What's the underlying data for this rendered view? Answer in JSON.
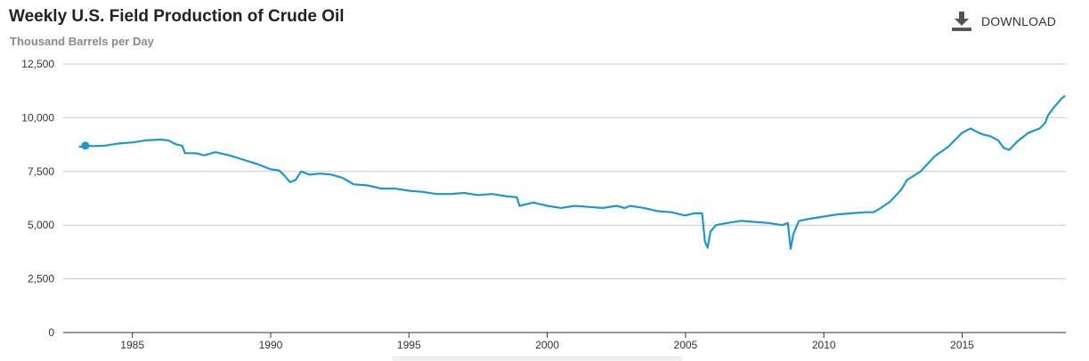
{
  "header": {
    "title": "Weekly U.S. Field Production of Crude Oil",
    "subtitle": "Thousand Barrels per Day",
    "download_label": "DOWNLOAD",
    "download_icon": "download-icon"
  },
  "colors": {
    "line": "#1f98c9",
    "grid": "#c8c8c8",
    "axis": "#333333",
    "text": "#333333"
  },
  "chart_data": {
    "type": "line",
    "title": "Weekly U.S. Field Production of Crude Oil",
    "ylabel": "Thousand Barrels per Day",
    "xlim": [
      1982.6,
      1986.6
    ],
    "ylim": [
      0,
      12500
    ],
    "y_ticks": [
      0,
      2500,
      5000,
      7500,
      10000,
      12500
    ],
    "y_tick_labels": [
      "0",
      "2,500",
      "5,000",
      "7,500",
      "10,000",
      "12,500"
    ],
    "x_ticks": [
      1985,
      1990,
      1995,
      2000,
      2005,
      2010,
      2015
    ],
    "x_tick_labels": [
      "1985",
      "1990",
      "1995",
      "2000",
      "2005",
      "2010",
      "2015"
    ],
    "grid": true,
    "legend": "none",
    "start_marker": {
      "x": 1983.3,
      "y": 8700
    },
    "series": [
      {
        "values": [
          [
            1983.1,
            8650
          ],
          [
            1983.3,
            8700
          ],
          [
            1983.6,
            8680
          ],
          [
            1984.0,
            8700
          ],
          [
            1984.5,
            8800
          ],
          [
            1985.0,
            8850
          ],
          [
            1985.5,
            8950
          ],
          [
            1986.0,
            8980
          ],
          [
            1986.3,
            8950
          ],
          [
            1986.6,
            8750
          ],
          [
            1986.8,
            8700
          ],
          [
            1986.9,
            8350
          ],
          [
            1987.3,
            8350
          ],
          [
            1987.6,
            8250
          ],
          [
            1988.0,
            8400
          ],
          [
            1988.5,
            8250
          ],
          [
            1989.0,
            8050
          ],
          [
            1989.5,
            7850
          ],
          [
            1990.0,
            7600
          ],
          [
            1990.3,
            7550
          ],
          [
            1990.5,
            7300
          ],
          [
            1990.7,
            7000
          ],
          [
            1990.9,
            7100
          ],
          [
            1991.1,
            7500
          ],
          [
            1991.4,
            7350
          ],
          [
            1991.8,
            7400
          ],
          [
            1992.2,
            7350
          ],
          [
            1992.6,
            7200
          ],
          [
            1993.0,
            6900
          ],
          [
            1993.5,
            6850
          ],
          [
            1994.0,
            6700
          ],
          [
            1994.5,
            6700
          ],
          [
            1995.0,
            6600
          ],
          [
            1995.5,
            6550
          ],
          [
            1996.0,
            6450
          ],
          [
            1996.5,
            6450
          ],
          [
            1997.0,
            6500
          ],
          [
            1997.5,
            6400
          ],
          [
            1998.0,
            6450
          ],
          [
            1998.5,
            6350
          ],
          [
            1998.9,
            6300
          ],
          [
            1999.0,
            5900
          ],
          [
            1999.5,
            6050
          ],
          [
            2000.0,
            5900
          ],
          [
            2000.5,
            5800
          ],
          [
            2001.0,
            5900
          ],
          [
            2001.5,
            5850
          ],
          [
            2002.0,
            5800
          ],
          [
            2002.5,
            5900
          ],
          [
            2002.8,
            5800
          ],
          [
            2003.0,
            5900
          ],
          [
            2003.5,
            5800
          ],
          [
            2004.0,
            5650
          ],
          [
            2004.5,
            5600
          ],
          [
            2004.8,
            5500
          ],
          [
            2005.0,
            5450
          ],
          [
            2005.3,
            5550
          ],
          [
            2005.6,
            5550
          ],
          [
            2005.7,
            4250
          ],
          [
            2005.8,
            3950
          ],
          [
            2005.9,
            4700
          ],
          [
            2006.1,
            5000
          ],
          [
            2006.5,
            5100
          ],
          [
            2007.0,
            5200
          ],
          [
            2007.5,
            5150
          ],
          [
            2008.0,
            5100
          ],
          [
            2008.5,
            5000
          ],
          [
            2008.7,
            5100
          ],
          [
            2008.8,
            3900
          ],
          [
            2008.9,
            4600
          ],
          [
            2009.1,
            5200
          ],
          [
            2009.5,
            5300
          ],
          [
            2010.0,
            5400
          ],
          [
            2010.5,
            5500
          ],
          [
            2011.0,
            5550
          ],
          [
            2011.5,
            5600
          ],
          [
            2011.8,
            5600
          ],
          [
            2012.0,
            5750
          ],
          [
            2012.4,
            6100
          ],
          [
            2012.8,
            6650
          ],
          [
            2013.0,
            7100
          ],
          [
            2013.5,
            7500
          ],
          [
            2014.0,
            8200
          ],
          [
            2014.5,
            8650
          ],
          [
            2015.0,
            9300
          ],
          [
            2015.3,
            9500
          ],
          [
            2015.6,
            9300
          ],
          [
            2015.8,
            9200
          ],
          [
            2016.0,
            9150
          ],
          [
            2016.3,
            8950
          ],
          [
            2016.5,
            8600
          ],
          [
            2016.7,
            8500
          ],
          [
            2017.0,
            8900
          ],
          [
            2017.4,
            9300
          ],
          [
            2017.8,
            9500
          ],
          [
            2018.0,
            9750
          ],
          [
            2018.1,
            10100
          ],
          [
            2018.3,
            10450
          ],
          [
            2018.6,
            10900
          ],
          [
            2018.7,
            11000
          ]
        ]
      }
    ]
  }
}
